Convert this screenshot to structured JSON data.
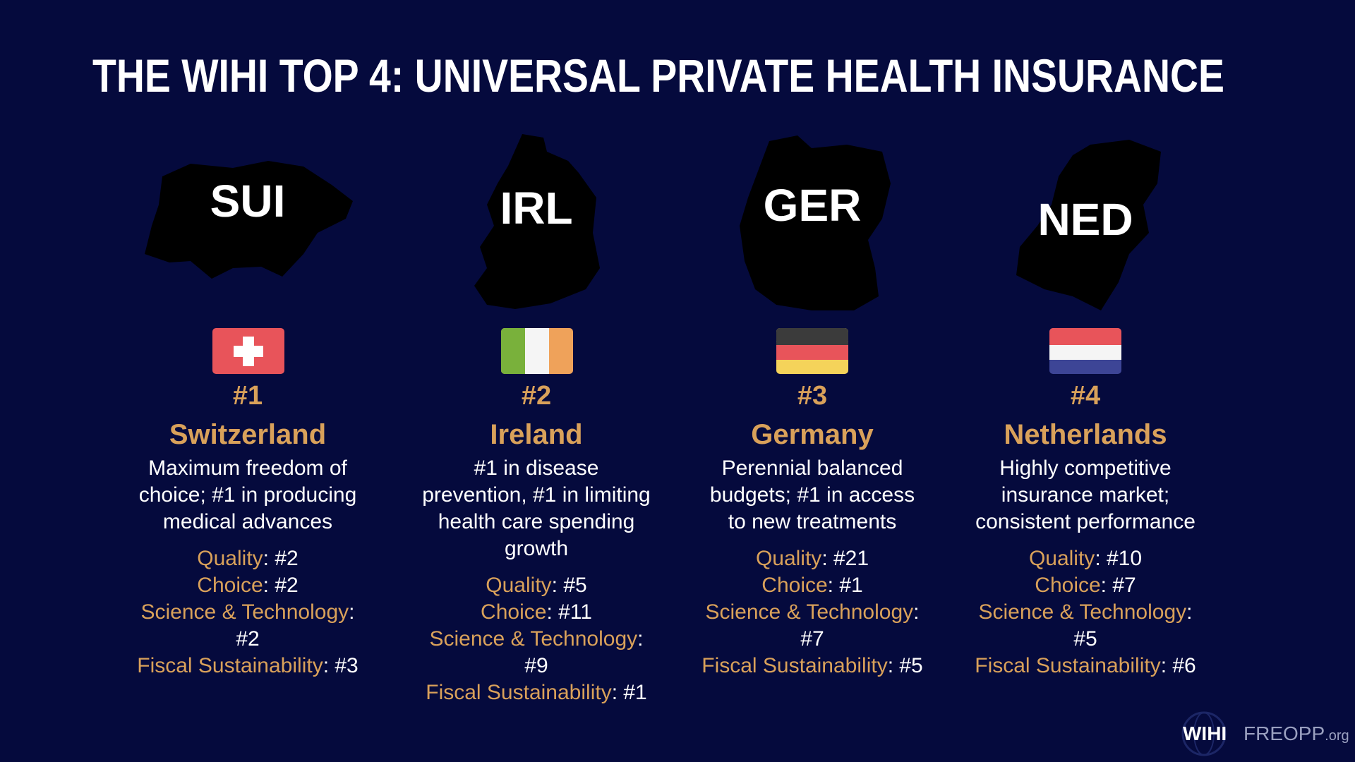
{
  "header": {
    "title": "THE WIHI TOP 4: UNIVERSAL PRIVATE HEALTH INSURANCE"
  },
  "countries": [
    {
      "code": "SUI",
      "rank": "#1",
      "name": "Switzerland",
      "description": [
        "Maximum freedom of",
        "choice; #1 in producing",
        "medical advances"
      ],
      "metrics": [
        {
          "label": "Quality",
          "value": ": #2"
        },
        {
          "label": "Choice",
          "value": ": #2"
        },
        {
          "label": "Science & Technology",
          "value": ": #2"
        },
        {
          "label": "Fiscal Sustainability",
          "value": ": #3"
        }
      ]
    },
    {
      "code": "IRL",
      "rank": "#2",
      "name": "Ireland",
      "description": [
        "#1 in disease",
        "prevention, #1 in limiting",
        "health care spending",
        "growth"
      ],
      "metrics": [
        {
          "label": "Quality",
          "value": ": #5"
        },
        {
          "label": "Choice",
          "value": ": #11"
        },
        {
          "label": "Science & Technology",
          "value": ": #9"
        },
        {
          "label": "Fiscal Sustainability",
          "value": ": #1"
        }
      ]
    },
    {
      "code": "GER",
      "rank": "#3",
      "name": "Germany",
      "description": [
        "Perennial balanced",
        "budgets; #1 in access",
        "to new treatments"
      ],
      "metrics": [
        {
          "label": "Quality",
          "value": ": #21"
        },
        {
          "label": "Choice",
          "value": ": #1"
        },
        {
          "label": "Science & Technology",
          "value": ": #7"
        },
        {
          "label": "Fiscal Sustainability",
          "value": ": #5"
        }
      ]
    },
    {
      "code": "NED",
      "rank": "#4",
      "name": "Netherlands",
      "description": [
        "Highly competitive",
        "insurance market;",
        "consistent performance"
      ],
      "metrics": [
        {
          "label": "Quality",
          "value": ": #10"
        },
        {
          "label": "Choice",
          "value": ": #7"
        },
        {
          "label": "Science & Technology",
          "value": ": #5"
        },
        {
          "label": "Fiscal Sustainability",
          "value": ": #6"
        }
      ]
    }
  ],
  "footer": {
    "logo_left": "WIHI",
    "logo_right": "FREOPP",
    "logo_right_suffix": ".org"
  }
}
